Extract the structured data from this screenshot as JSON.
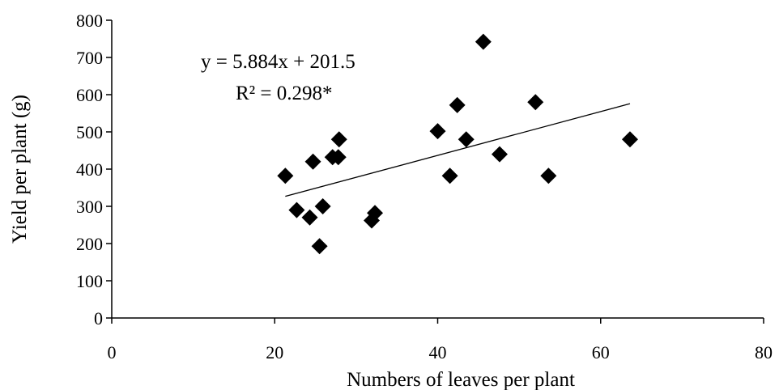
{
  "chart_data": {
    "type": "scatter",
    "xlabel": "Numbers of leaves per plant",
    "ylabel": "Yield  per plant (g)",
    "xlim": [
      0,
      80
    ],
    "ylim": [
      0,
      800
    ],
    "x_ticks": [
      "0",
      "20",
      "40",
      "60",
      "80"
    ],
    "y_ticks": [
      "0",
      "100",
      "200",
      "300",
      "400",
      "500",
      "600",
      "700",
      "800"
    ],
    "grid": false,
    "legend": "none",
    "marker": "diamond",
    "marker_color": "#000000",
    "points": [
      {
        "x": 21.3,
        "y": 382
      },
      {
        "x": 22.7,
        "y": 290
      },
      {
        "x": 24.3,
        "y": 270
      },
      {
        "x": 24.7,
        "y": 420
      },
      {
        "x": 25.5,
        "y": 193
      },
      {
        "x": 25.9,
        "y": 300
      },
      {
        "x": 27.1,
        "y": 432
      },
      {
        "x": 27.8,
        "y": 432
      },
      {
        "x": 27.9,
        "y": 480
      },
      {
        "x": 31.9,
        "y": 262
      },
      {
        "x": 32.3,
        "y": 282
      },
      {
        "x": 40.0,
        "y": 502
      },
      {
        "x": 41.5,
        "y": 382
      },
      {
        "x": 42.4,
        "y": 572
      },
      {
        "x": 43.5,
        "y": 480
      },
      {
        "x": 45.6,
        "y": 742
      },
      {
        "x": 47.6,
        "y": 440
      },
      {
        "x": 52.0,
        "y": 580
      },
      {
        "x": 53.6,
        "y": 382
      },
      {
        "x": 63.6,
        "y": 480
      }
    ],
    "trendline": {
      "slope": 5.884,
      "intercept": 201.5,
      "x_range": [
        21.3,
        63.6
      ],
      "equation": "y = 5.884x + 201.5",
      "r_squared": "R² = 0.298*"
    }
  }
}
